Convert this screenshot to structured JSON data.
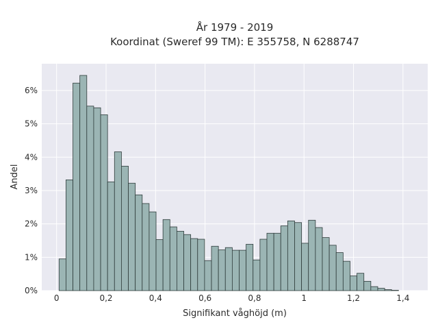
{
  "chart_data": {
    "type": "bar",
    "title_line1": "År 1979 - 2019",
    "title_line2": "Koordinat (Sweref 99 TM): E 355758, N 6288747",
    "xlabel": "Signifikant våghöjd (m)",
    "ylabel": "Andel",
    "xlim": [
      -0.06,
      1.5
    ],
    "ylim": [
      0,
      6.8
    ],
    "x_ticks": [
      0,
      0.2,
      0.4,
      0.6,
      0.8,
      1.0,
      1.2,
      1.4
    ],
    "x_tick_labels": [
      "0",
      "0,2",
      "0,4",
      "0,6",
      "0,8",
      "1",
      "1,2",
      "1,4"
    ],
    "y_ticks": [
      0,
      1,
      2,
      3,
      4,
      5,
      6
    ],
    "y_tick_labels": [
      "0%",
      "1%",
      "2%",
      "3%",
      "4%",
      "5%",
      "6%"
    ],
    "bin_start": 0.01,
    "bin_width": 0.028,
    "values": [
      0.95,
      3.32,
      6.22,
      6.45,
      5.53,
      5.48,
      5.27,
      3.26,
      4.16,
      3.73,
      3.22,
      2.87,
      2.61,
      2.36,
      1.53,
      2.13,
      1.91,
      1.78,
      1.68,
      1.56,
      1.54,
      0.9,
      1.33,
      1.22,
      1.29,
      1.21,
      1.21,
      1.39,
      0.92,
      1.54,
      1.72,
      1.72,
      1.94,
      2.09,
      2.04,
      1.42,
      2.11,
      1.89,
      1.59,
      1.36,
      1.14,
      0.88,
      0.44,
      0.52,
      0.28,
      0.12,
      0.07,
      0.03,
      0.01
    ],
    "grid": true,
    "colors": {
      "bar": "#9bb5b4",
      "edge": "#2e3b3a",
      "plot_bg": "#e9e9f1",
      "grid": "#ffffff"
    }
  }
}
